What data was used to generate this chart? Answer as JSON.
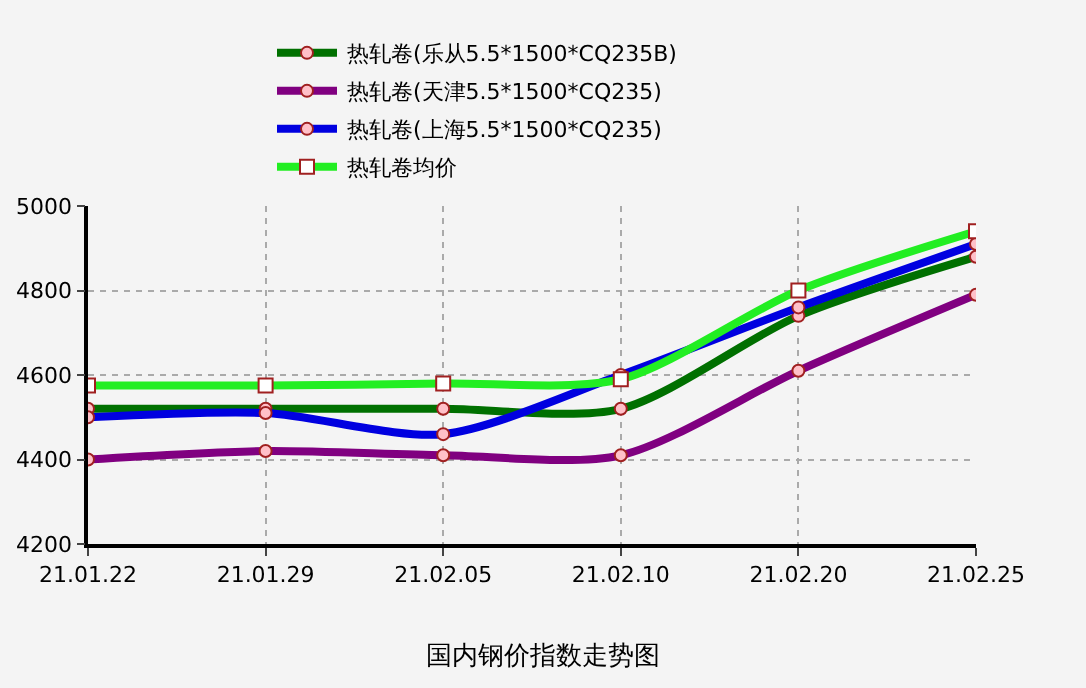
{
  "chart_data": {
    "type": "line",
    "title": "国内钢价指数走势图",
    "categories": [
      "21.01.22",
      "21.01.29",
      "21.02.05",
      "21.02.10",
      "21.02.20",
      "21.02.25"
    ],
    "series": [
      {
        "name": "热轧卷(乐从5.5*1500*CQ235B)",
        "color": "#007000",
        "marker": "circle",
        "values": [
          4520,
          4520,
          4520,
          4520,
          4740,
          4880
        ]
      },
      {
        "name": "热轧卷(天津5.5*1500*CQ235)",
        "color": "#800080",
        "marker": "circle",
        "values": [
          4400,
          4420,
          4410,
          4410,
          4610,
          4790
        ]
      },
      {
        "name": "热轧卷(上海5.5*1500*CQ235)",
        "color": "#0000e0",
        "marker": "circle",
        "values": [
          4500,
          4510,
          4460,
          4600,
          4760,
          4910
        ]
      },
      {
        "name": "热轧卷均价",
        "color": "#22ee22",
        "marker": "square",
        "values": [
          4575,
          4575,
          4580,
          4590,
          4800,
          4940
        ]
      }
    ],
    "ylim": [
      4200,
      5000
    ],
    "yticks": [
      4200,
      4400,
      4600,
      4800,
      5000
    ],
    "grid": true,
    "legend": "top",
    "line_style": "solid"
  }
}
